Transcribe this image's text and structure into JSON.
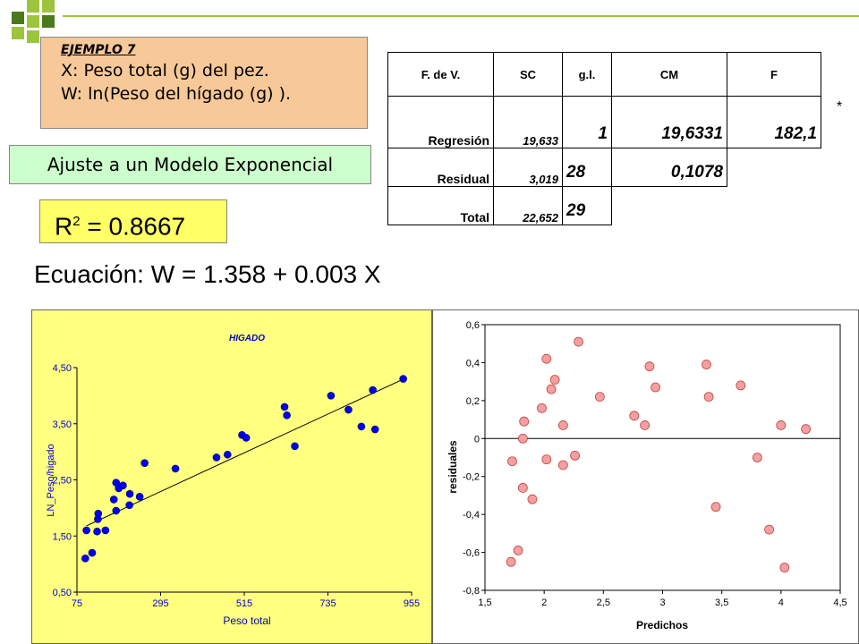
{
  "example": {
    "title": "EJEMPLO 7",
    "line_x": "X: Peso total (g) del pez.",
    "line_w": "W: ln(Peso del hígado (g) )."
  },
  "model_title": "Ajuste a un Modelo Exponencial",
  "r2": {
    "label": "R",
    "sup": "2",
    "value": " = 0.8667"
  },
  "equation": "Ecuación: W = 1.358 + 0.003 X",
  "anova": {
    "headers": [
      "F. de V.",
      "SC",
      "g.l.",
      "CM",
      "F"
    ],
    "rows": [
      {
        "source": "Regresión",
        "sc": "19,633",
        "gl": "1",
        "cm": "19,6331",
        "f": "182,1"
      },
      {
        "source": "Residual",
        "sc": "3,019",
        "gl": "28",
        "cm": "0,1078"
      },
      {
        "source": "Total",
        "sc": "22,652",
        "gl": "29"
      }
    ],
    "significance_mark": "*"
  },
  "colors": {
    "accent_green": "#9cc43c",
    "dark_green": "#4a7a1a",
    "left_chart_bg": "#ffff80",
    "point_blue": "#0000ee",
    "point_pink": "#f4a0a0"
  },
  "chart_data": [
    {
      "type": "scatter",
      "title": "HIGADO",
      "xlabel": "Peso total",
      "ylabel": "LN_Peso/higado",
      "xlim": [
        75,
        955
      ],
      "ylim": [
        0.5,
        4.5
      ],
      "x_ticks": [
        "75",
        "295",
        "515",
        "735",
        "955"
      ],
      "y_ticks": [
        "0,50",
        "1,50",
        "2,50",
        "3,50",
        "4,50"
      ],
      "fit_line": {
        "x": [
          100,
          935
        ],
        "y": [
          1.68,
          4.3
        ]
      },
      "points": [
        {
          "x": 97,
          "y": 1.1
        },
        {
          "x": 100,
          "y": 1.6
        },
        {
          "x": 115,
          "y": 1.2
        },
        {
          "x": 128,
          "y": 1.58
        },
        {
          "x": 130,
          "y": 1.8
        },
        {
          "x": 131,
          "y": 1.9
        },
        {
          "x": 150,
          "y": 1.6
        },
        {
          "x": 172,
          "y": 2.15
        },
        {
          "x": 178,
          "y": 1.95
        },
        {
          "x": 178,
          "y": 2.45
        },
        {
          "x": 185,
          "y": 2.35
        },
        {
          "x": 196,
          "y": 2.4
        },
        {
          "x": 213,
          "y": 2.05
        },
        {
          "x": 214,
          "y": 2.25
        },
        {
          "x": 240,
          "y": 2.2
        },
        {
          "x": 253,
          "y": 2.8
        },
        {
          "x": 334,
          "y": 2.7
        },
        {
          "x": 442,
          "y": 2.9
        },
        {
          "x": 471,
          "y": 2.95
        },
        {
          "x": 509,
          "y": 3.3
        },
        {
          "x": 520,
          "y": 3.25
        },
        {
          "x": 621,
          "y": 3.8
        },
        {
          "x": 627,
          "y": 3.65
        },
        {
          "x": 648,
          "y": 3.1
        },
        {
          "x": 743,
          "y": 4.0
        },
        {
          "x": 789,
          "y": 3.75
        },
        {
          "x": 823,
          "y": 3.45
        },
        {
          "x": 853,
          "y": 4.1
        },
        {
          "x": 859,
          "y": 3.4
        },
        {
          "x": 933,
          "y": 4.3
        }
      ]
    },
    {
      "type": "scatter",
      "xlabel": "Predichos",
      "ylabel": "residuales",
      "xlim": [
        1.5,
        4.5
      ],
      "ylim": [
        -0.8,
        0.6
      ],
      "x_ticks": [
        "1,5",
        "2",
        "2,5",
        "3",
        "3,5",
        "4",
        "4,5"
      ],
      "y_ticks": [
        "-0,8",
        "-0,6",
        "-0,4",
        "-0,2",
        "0",
        "0,2",
        "0,4",
        "0,6"
      ],
      "points": [
        {
          "x": 1.72,
          "y": -0.65
        },
        {
          "x": 1.78,
          "y": -0.59
        },
        {
          "x": 1.73,
          "y": -0.12
        },
        {
          "x": 1.82,
          "y": -0.26
        },
        {
          "x": 1.83,
          "y": 0.09
        },
        {
          "x": 1.82,
          "y": 0.0
        },
        {
          "x": 1.9,
          "y": -0.32
        },
        {
          "x": 1.98,
          "y": 0.16
        },
        {
          "x": 2.02,
          "y": -0.11
        },
        {
          "x": 2.02,
          "y": 0.42
        },
        {
          "x": 2.06,
          "y": 0.26
        },
        {
          "x": 2.09,
          "y": 0.31
        },
        {
          "x": 2.16,
          "y": -0.14
        },
        {
          "x": 2.16,
          "y": 0.07
        },
        {
          "x": 2.26,
          "y": -0.09
        },
        {
          "x": 2.29,
          "y": 0.51
        },
        {
          "x": 2.47,
          "y": 0.22
        },
        {
          "x": 2.76,
          "y": 0.12
        },
        {
          "x": 2.85,
          "y": 0.07
        },
        {
          "x": 2.89,
          "y": 0.38
        },
        {
          "x": 2.94,
          "y": 0.27
        },
        {
          "x": 3.37,
          "y": 0.39
        },
        {
          "x": 3.39,
          "y": 0.22
        },
        {
          "x": 3.45,
          "y": -0.36
        },
        {
          "x": 3.66,
          "y": 0.28
        },
        {
          "x": 3.8,
          "y": -0.1
        },
        {
          "x": 3.9,
          "y": -0.48
        },
        {
          "x": 4.0,
          "y": 0.07
        },
        {
          "x": 4.03,
          "y": -0.68
        },
        {
          "x": 4.21,
          "y": 0.05
        }
      ]
    }
  ]
}
